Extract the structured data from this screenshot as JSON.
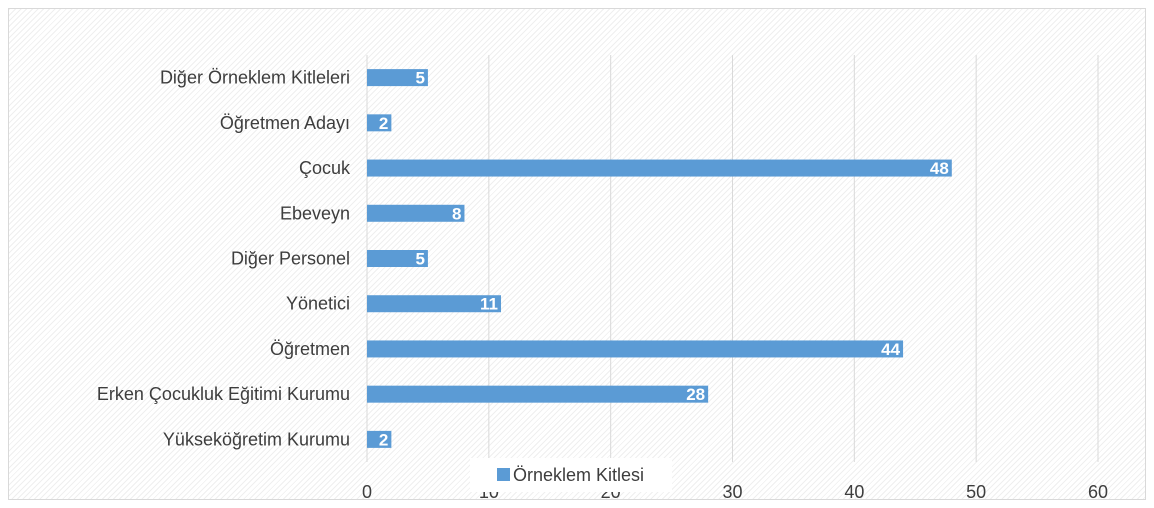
{
  "chart_data": {
    "type": "bar",
    "orientation": "horizontal",
    "categories": [
      "Yükseköğretim Kurumu",
      "Erken Çocukluk Eğitimi Kurumu",
      "Öğretmen",
      "Yönetici",
      "Diğer Personel",
      "Ebeveyn",
      "Çocuk",
      "Öğretmen Adayı",
      "Diğer Örneklem Kitleleri"
    ],
    "series": [
      {
        "name": "Örneklem Kitlesi",
        "values": [
          2,
          28,
          44,
          11,
          5,
          8,
          48,
          2,
          5
        ],
        "color": "#5b9bd5"
      }
    ],
    "xlim": [
      0,
      60
    ],
    "xticks": [
      0,
      10,
      20,
      30,
      40,
      50,
      60
    ],
    "grid": true,
    "data_labels": true,
    "legend_position": "bottom"
  }
}
